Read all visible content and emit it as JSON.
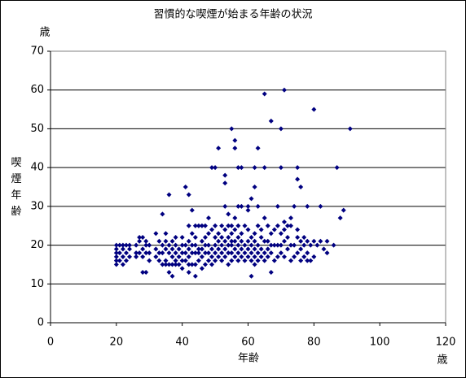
{
  "chart_data": {
    "type": "scatter",
    "title": "習慣的な喫煙が始まる年齢の状況",
    "y_unit": "歳",
    "y_label": "喫煙年齢",
    "x_label": "年齢",
    "x_unit": "歳",
    "color": "#000080",
    "xlim": [
      0,
      120
    ],
    "xticks": [
      0,
      20,
      40,
      60,
      80,
      100,
      120
    ],
    "ylim": [
      0,
      70
    ],
    "yticks": [
      0,
      10,
      20,
      30,
      40,
      50,
      60,
      70
    ],
    "grid": true,
    "x": [
      20,
      20,
      20,
      20,
      20,
      20,
      21,
      21,
      21,
      22,
      22,
      22,
      22,
      23,
      23,
      23,
      24,
      24,
      24,
      26,
      26,
      26,
      27,
      27,
      27,
      28,
      28,
      28,
      28,
      29,
      29,
      29,
      29,
      30,
      30,
      30,
      32,
      32,
      32,
      33,
      33,
      33,
      34,
      34,
      34,
      34,
      35,
      35,
      35,
      35,
      35,
      36,
      36,
      36,
      36,
      36,
      37,
      37,
      37,
      37,
      37,
      38,
      38,
      38,
      38,
      38,
      39,
      39,
      39,
      40,
      40,
      40,
      40,
      40,
      41,
      41,
      41,
      41,
      42,
      42,
      42,
      42,
      42,
      42,
      42,
      43,
      43,
      43,
      43,
      43,
      44,
      44,
      44,
      44,
      44,
      44,
      45,
      45,
      45,
      45,
      46,
      46,
      46,
      46,
      46,
      47,
      47,
      47,
      47,
      47,
      48,
      48,
      48,
      48,
      48,
      49,
      49,
      49,
      49,
      49,
      50,
      50,
      50,
      50,
      50,
      50,
      51,
      51,
      51,
      51,
      51,
      52,
      52,
      52,
      52,
      52,
      53,
      53,
      53,
      53,
      53,
      53,
      53,
      54,
      54,
      54,
      54,
      54,
      54,
      55,
      55,
      55,
      55,
      55,
      55,
      55,
      56,
      56,
      56,
      56,
      56,
      56,
      56,
      57,
      57,
      57,
      57,
      57,
      57,
      57,
      58,
      58,
      58,
      58,
      58,
      58,
      59,
      59,
      59,
      59,
      60,
      60,
      60,
      60,
      60,
      60,
      61,
      61,
      61,
      61,
      61,
      61,
      62,
      62,
      62,
      62,
      62,
      62,
      62,
      63,
      63,
      63,
      63,
      63,
      63,
      64,
      64,
      64,
      64,
      65,
      65,
      65,
      65,
      65,
      65,
      66,
      66,
      66,
      66,
      67,
      67,
      67,
      67,
      67,
      68,
      68,
      68,
      69,
      69,
      69,
      69,
      70,
      70,
      70,
      70,
      70,
      71,
      71,
      71,
      71,
      71,
      72,
      72,
      72,
      73,
      73,
      73,
      73,
      74,
      74,
      74,
      75,
      75,
      75,
      75,
      75,
      76,
      76,
      76,
      76,
      77,
      77,
      77,
      78,
      78,
      78,
      78,
      79,
      79,
      80,
      80,
      80,
      81,
      82,
      82,
      83,
      84,
      84,
      86,
      87,
      88,
      89,
      91
    ],
    "values": [
      15,
      16,
      17,
      18,
      19,
      20,
      16,
      18,
      20,
      15,
      17,
      19,
      20,
      16,
      18,
      20,
      17,
      19,
      20,
      17,
      18,
      20,
      18,
      21,
      22,
      13,
      17,
      19,
      22,
      13,
      18,
      20,
      21,
      16,
      18,
      20,
      17,
      19,
      23,
      16,
      18,
      21,
      15,
      18,
      20,
      28,
      15,
      16,
      19,
      21,
      23,
      13,
      15,
      18,
      20,
      33,
      12,
      15,
      17,
      19,
      21,
      15,
      16,
      18,
      20,
      22,
      15,
      17,
      19,
      14,
      16,
      18,
      20,
      22,
      16,
      18,
      20,
      35,
      13,
      15,
      17,
      19,
      21,
      25,
      33,
      15,
      18,
      20,
      23,
      29,
      12,
      15,
      18,
      20,
      22,
      25,
      16,
      18,
      19,
      25,
      14,
      17,
      19,
      21,
      25,
      15,
      18,
      20,
      22,
      25,
      16,
      18,
      20,
      23,
      27,
      15,
      17,
      19,
      24,
      40,
      16,
      18,
      20,
      22,
      25,
      40,
      17,
      19,
      21,
      23,
      45,
      16,
      18,
      20,
      22,
      25,
      17,
      19,
      21,
      24,
      30,
      36,
      38,
      15,
      18,
      20,
      22,
      25,
      28,
      16,
      18,
      20,
      21,
      23,
      25,
      50,
      17,
      19,
      21,
      24,
      27,
      45,
      47,
      16,
      18,
      20,
      22,
      25,
      30,
      40,
      17,
      19,
      21,
      23,
      30,
      40,
      16,
      18,
      20,
      25,
      17,
      19,
      21,
      24,
      29,
      30,
      12,
      16,
      18,
      20,
      22,
      32,
      15,
      17,
      19,
      21,
      23,
      35,
      40,
      16,
      18,
      20,
      25,
      30,
      45,
      17,
      19,
      22,
      24,
      16,
      18,
      21,
      27,
      40,
      59,
      17,
      19,
      21,
      25,
      13,
      18,
      20,
      23,
      52,
      16,
      20,
      24,
      17,
      20,
      25,
      30,
      18,
      20,
      23,
      40,
      50,
      17,
      21,
      24,
      26,
      60,
      19,
      22,
      25,
      16,
      20,
      25,
      27,
      17,
      20,
      30,
      18,
      22,
      24,
      37,
      40,
      16,
      19,
      21,
      35,
      17,
      20,
      22,
      16,
      18,
      21,
      30,
      16,
      20,
      17,
      21,
      55,
      20,
      21,
      30,
      19,
      18,
      21,
      20,
      40,
      27,
      29,
      50
    ]
  }
}
